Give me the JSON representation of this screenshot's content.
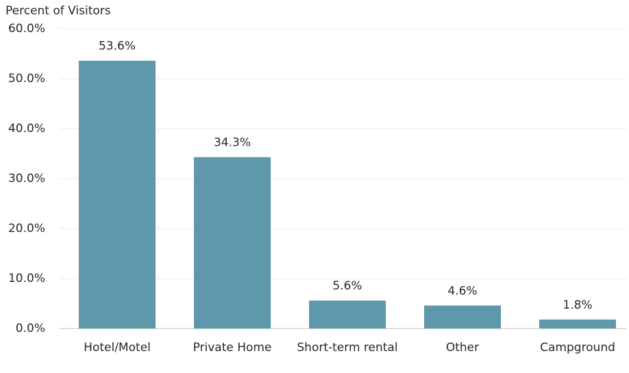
{
  "chart_data": {
    "type": "bar",
    "y_axis_label": "Percent of Visitors",
    "categories": [
      "Hotel/Motel",
      "Private Home",
      "Short-term rental",
      "Other",
      "Campground"
    ],
    "values": [
      53.6,
      34.3,
      5.6,
      4.6,
      1.8
    ],
    "value_labels": [
      "53.6%",
      "34.3%",
      "5.6%",
      "4.6%",
      "1.8%"
    ],
    "color": "#5e98aa",
    "ylim": [
      0,
      60
    ],
    "yticks": [
      {
        "value": 0,
        "label": "0.0%"
      },
      {
        "value": 10,
        "label": "10.0%"
      },
      {
        "value": 20,
        "label": "20.0%"
      },
      {
        "value": 30,
        "label": "30.0%"
      },
      {
        "value": 40,
        "label": "40.0%"
      },
      {
        "value": 50,
        "label": "50.0%"
      },
      {
        "value": 60,
        "label": "60.0%"
      }
    ],
    "grid": true
  }
}
